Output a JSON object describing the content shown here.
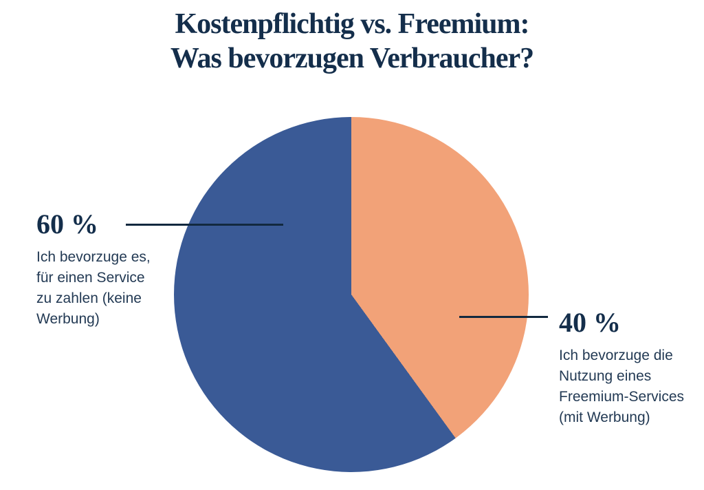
{
  "title": {
    "line1": "Kostenpflichtig vs. Freemium:",
    "line2": "Was bevorzugen Verbraucher?"
  },
  "chart_data": {
    "type": "pie",
    "title": "Kostenpflichtig vs. Freemium: Was bevorzugen Verbraucher?",
    "order_note": "slices listed clockwise starting at 12 o'clock",
    "slices": [
      {
        "label": "Ich bevorzuge die Nutzung eines Freemium-Services (mit Werbung)",
        "value": 40,
        "display_value": "40 %",
        "color": "#F2A278"
      },
      {
        "label": "Ich bevorzuge es, für einen Service zu zahlen (keine Werbung)",
        "value": 60,
        "display_value": "60 %",
        "color": "#3A5A96"
      }
    ],
    "legend": "none",
    "labels_position": "outside with leader lines"
  },
  "annotations": {
    "left": {
      "value_label": "60 %",
      "description": "Ich bevorzuge es,\nfür einen Service\nzu zahlen (keine\nWerbung)"
    },
    "right": {
      "value_label": "40 %",
      "description": "Ich bevorzuge die\nNutzung eines\nFreemium-Services\n(mit Werbung)"
    }
  },
  "colors": {
    "paid_slice": "#3A5A96",
    "freemium_slice": "#F2A278",
    "text_navy": "#142E4B",
    "description_text": "#233A54",
    "leader_line": "#12293F",
    "background": "#FFFFFF"
  }
}
